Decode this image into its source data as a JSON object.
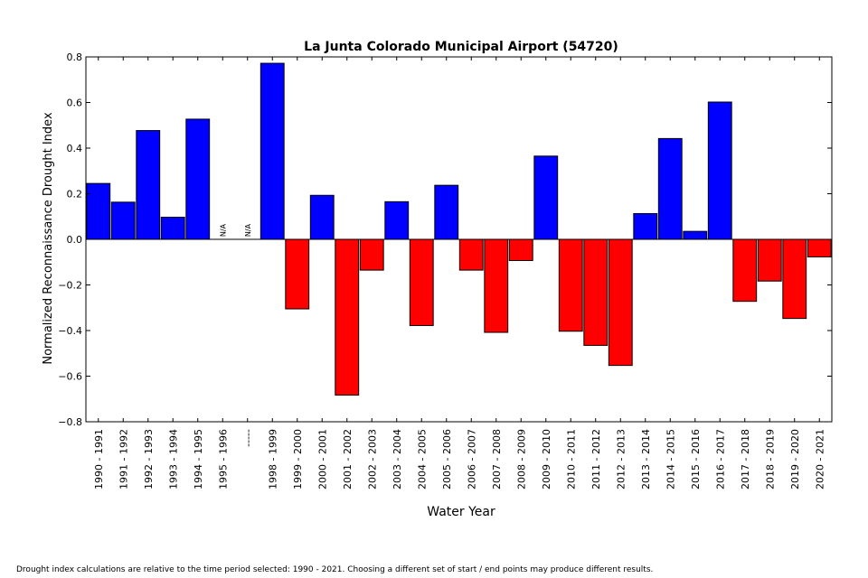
{
  "chart_data": {
    "type": "bar",
    "title": "La Junta Colorado Municipal Airport (54720)",
    "xlabel": "Water Year",
    "ylabel": "Normalized Reconnaissance Drought Index",
    "ylim": [
      -0.8,
      0.8
    ],
    "yticks": [
      "0.8",
      "0.6",
      "0.4",
      "0.2",
      "0.0",
      "−0.2",
      "−0.4",
      "−0.6",
      "−0.8"
    ],
    "ytick_values": [
      0.8,
      0.6,
      0.4,
      0.2,
      0.0,
      -0.2,
      -0.4,
      -0.6,
      -0.8
    ],
    "categories": [
      "1990 - 1991",
      "1991 - 1992",
      "1992 - 1993",
      "1993 - 1994",
      "1994 - 1995",
      "1995 - 1996",
      "-----",
      "1998 - 1999",
      "1999 - 2000",
      "2000 - 2001",
      "2001 - 2002",
      "2002 - 2003",
      "2003 - 2004",
      "2004 - 2005",
      "2005 - 2006",
      "2006 - 2007",
      "2007 - 2008",
      "2008 - 2009",
      "2009 - 2010",
      "2010 - 2011",
      "2011 - 2012",
      "2012 - 2013",
      "2013 - 2014",
      "2014 - 2015",
      "2015 - 2016",
      "2016 - 2017",
      "2017 - 2018",
      "2018 - 2019",
      "2019 - 2020",
      "2020 - 2021"
    ],
    "values": [
      0.245,
      0.163,
      0.477,
      0.097,
      0.527,
      null,
      null,
      0.772,
      -0.305,
      0.193,
      -0.683,
      -0.135,
      0.165,
      -0.378,
      0.237,
      -0.135,
      -0.408,
      -0.093,
      0.365,
      -0.403,
      -0.465,
      -0.553,
      0.113,
      0.442,
      0.035,
      0.602,
      -0.272,
      -0.183,
      -0.347,
      -0.077
    ],
    "na_label": "N/A",
    "colors": {
      "positive": "#0000ff",
      "negative": "#ff0000"
    },
    "grid": false
  },
  "footnote": "Drought index calculations are relative to the time period selected: 1990 - 2021. Choosing a different set of start / end points may produce different results."
}
